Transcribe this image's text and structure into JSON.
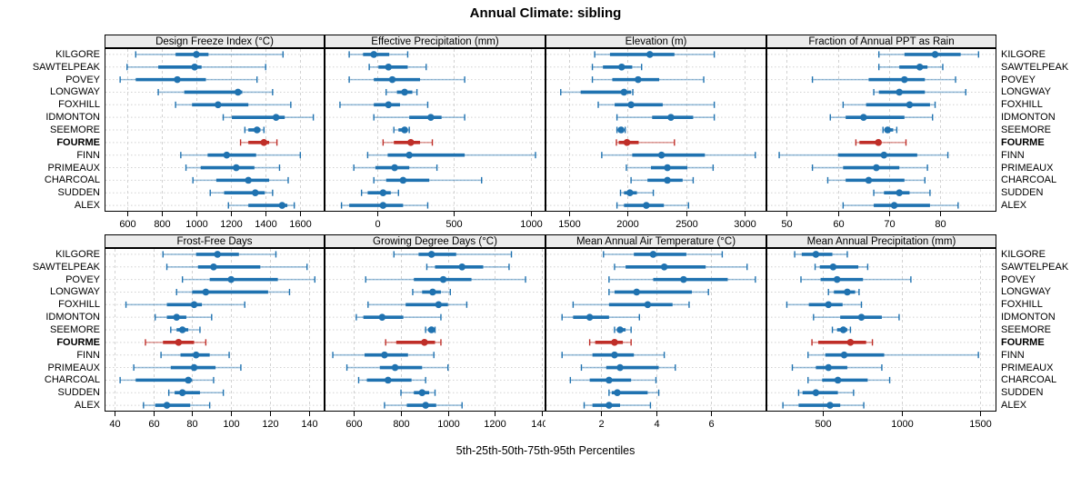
{
  "title": "Annual Climate: sibling",
  "xlabel": "5th-25th-50th-75th-95th Percentiles",
  "sites": [
    "KILGORE",
    "SAWTELPEAK",
    "POVEY",
    "LONGWAY",
    "FOXHILL",
    "IDMONTON",
    "SEEMORE",
    "FOURME",
    "FINN",
    "PRIMEAUX",
    "CHARCOAL",
    "SUDDEN",
    "ALEX"
  ],
  "highlight_site": "FOURME",
  "colors": {
    "normal": "#1f72b0",
    "highlight": "#bf2e28",
    "grid": "#d2d2d2",
    "strip_bg": "#ececec",
    "border": "#000000"
  },
  "chart_data": [
    {
      "type": "dot-range",
      "title": "Design Freeze Index (°C)",
      "row": 0,
      "col": 0,
      "xlim": [
        470,
        1740
      ],
      "xticks": [
        600,
        800,
        1000,
        1200,
        1400,
        1600
      ],
      "percentiles": [
        "5th",
        "25th",
        "50th",
        "75th",
        "95th"
      ],
      "data": {
        "KILGORE": [
          650,
          880,
          1000,
          1070,
          1500
        ],
        "SAWTELPEAK": [
          600,
          780,
          990,
          1030,
          1400
        ],
        "POVEY": [
          560,
          650,
          890,
          1055,
          1350
        ],
        "LONGWAY": [
          780,
          930,
          1240,
          1265,
          1440
        ],
        "FOXHILL": [
          880,
          975,
          1125,
          1300,
          1545
        ],
        "IDMONTON": [
          1155,
          1205,
          1460,
          1510,
          1675
        ],
        "SEEMORE": [
          1280,
          1300,
          1350,
          1370,
          1390
        ],
        "FOURME": [
          1255,
          1300,
          1390,
          1420,
          1465
        ],
        "FINN": [
          910,
          1065,
          1175,
          1345,
          1600
        ],
        "PRIMEAUX": [
          940,
          1025,
          1230,
          1335,
          1480
        ],
        "CHARCOAL": [
          980,
          1115,
          1300,
          1420,
          1530
        ],
        "SUDDEN": [
          1080,
          1160,
          1340,
          1395,
          1440
        ],
        "ALEX": [
          1185,
          1300,
          1495,
          1525,
          1565
        ]
      }
    },
    {
      "type": "dot-range",
      "title": "Effective Precipitation (mm)",
      "row": 0,
      "col": 1,
      "xlim": [
        -340,
        1095
      ],
      "xticks": [
        0,
        500,
        1000
      ],
      "percentiles": [
        "5th",
        "25th",
        "50th",
        "75th",
        "95th"
      ],
      "data": {
        "KILGORE": [
          -180,
          -90,
          -20,
          80,
          200
        ],
        "SAWTELPEAK": [
          -50,
          10,
          75,
          200,
          320
        ],
        "POVEY": [
          -180,
          -20,
          100,
          280,
          570
        ],
        "LONGWAY": [
          60,
          130,
          180,
          230,
          260
        ],
        "FOXHILL": [
          -240,
          -20,
          75,
          150,
          330
        ],
        "IDMONTON": [
          -20,
          210,
          350,
          420,
          570
        ],
        "SEEMORE": [
          110,
          140,
          180,
          200,
          210
        ],
        "FOURME": [
          40,
          110,
          220,
          280,
          360
        ],
        "FINN": [
          -60,
          70,
          210,
          570,
          1030
        ],
        "PRIMEAUX": [
          -150,
          -10,
          115,
          210,
          390
        ],
        "CHARCOAL": [
          -20,
          60,
          170,
          340,
          680
        ],
        "SUDDEN": [
          -100,
          -60,
          40,
          90,
          140
        ],
        "ALEX": [
          -230,
          -180,
          40,
          170,
          330
        ]
      }
    },
    {
      "type": "dot-range",
      "title": "Elevation (m)",
      "row": 0,
      "col": 2,
      "xlim": [
        1300,
        3185
      ],
      "xticks": [
        1500,
        2000,
        2500,
        3000
      ],
      "percentiles": [
        "5th",
        "25th",
        "50th",
        "75th",
        "95th"
      ],
      "data": {
        "KILGORE": [
          1720,
          1850,
          2190,
          2400,
          2740
        ],
        "SAWTELPEAK": [
          1700,
          1790,
          1950,
          2040,
          2120
        ],
        "POVEY": [
          1700,
          1870,
          2090,
          2270,
          2650
        ],
        "LONGWAY": [
          1430,
          1600,
          1970,
          2030,
          2045
        ],
        "FOXHILL": [
          1750,
          1890,
          2030,
          2300,
          2740
        ],
        "IDMONTON": [
          1910,
          2210,
          2370,
          2560,
          2740
        ],
        "SEEMORE": [
          1910,
          1925,
          1945,
          1960,
          1980
        ],
        "FOURME": [
          1905,
          1925,
          1995,
          2095,
          2400
        ],
        "FINN": [
          1780,
          2040,
          2290,
          2660,
          3090
        ],
        "PRIMEAUX": [
          1990,
          2200,
          2340,
          2510,
          2730
        ],
        "CHARCOAL": [
          2030,
          2170,
          2340,
          2470,
          2560
        ],
        "SUDDEN": [
          1940,
          1970,
          2020,
          2080,
          2220
        ],
        "ALEX": [
          1910,
          1970,
          2160,
          2310,
          2520
        ]
      }
    },
    {
      "type": "dot-range",
      "title": "Fraction of Annual PPT as Rain",
      "row": 0,
      "col": 3,
      "xlim": [
        46,
        91
      ],
      "xticks": [
        50,
        60,
        70,
        80
      ],
      "percentiles": [
        "5th",
        "25th",
        "50th",
        "75th",
        "95th"
      ],
      "data": {
        "KILGORE": [
          68,
          73,
          79,
          84,
          87.5
        ],
        "SAWTELPEAK": [
          68,
          72,
          76,
          77.5,
          80.5
        ],
        "POVEY": [
          55,
          66,
          73,
          77,
          83
        ],
        "LONGWAY": [
          67,
          68,
          72,
          77,
          85
        ],
        "FOXHILL": [
          61,
          65.5,
          74,
          78,
          79
        ],
        "IDMONTON": [
          58.5,
          61.5,
          65,
          73,
          78.5
        ],
        "SEEMORE": [
          68.8,
          69.2,
          69.7,
          70.8,
          71.5
        ],
        "FOURME": [
          63.5,
          64.2,
          67.9,
          68.4,
          73.3
        ],
        "FINN": [
          48.5,
          60,
          69,
          75.5,
          81.5
        ],
        "PRIMEAUX": [
          55,
          61,
          67.5,
          72,
          77.5
        ],
        "CHARCOAL": [
          58,
          61.5,
          66,
          73,
          77
        ],
        "SUDDEN": [
          67,
          69,
          72,
          74,
          78
        ],
        "ALEX": [
          61,
          67,
          71,
          78,
          83.5
        ]
      }
    },
    {
      "type": "dot-range",
      "title": "Frost-Free Days",
      "row": 1,
      "col": 0,
      "xlim": [
        35,
        148
      ],
      "xticks": [
        40,
        60,
        80,
        100,
        120,
        140
      ],
      "percentiles": [
        "5th",
        "25th",
        "50th",
        "75th",
        "95th"
      ],
      "data": {
        "KILGORE": [
          65,
          82,
          93,
          104,
          123
        ],
        "SAWTELPEAK": [
          67,
          83,
          91,
          115,
          139
        ],
        "POVEY": [
          75,
          89,
          100,
          124,
          143
        ],
        "LONGWAY": [
          72,
          80,
          87,
          119,
          130
        ],
        "FOXHILL": [
          46,
          67,
          81,
          85,
          107
        ],
        "IDMONTON": [
          61,
          67,
          72,
          77,
          90
        ],
        "SEEMORE": [
          69,
          72,
          75,
          78,
          84
        ],
        "FOURME": [
          56,
          65,
          73,
          81,
          87
        ],
        "FINN": [
          64,
          74,
          82,
          89,
          99
        ],
        "PRIMEAUX": [
          50,
          69,
          81,
          92,
          105
        ],
        "CHARCOAL": [
          43,
          51,
          78,
          80,
          91
        ],
        "SUDDEN": [
          68,
          71,
          75,
          84,
          96
        ],
        "ALEX": [
          55,
          61,
          67,
          79,
          89
        ]
      }
    },
    {
      "type": "dot-range",
      "title": "Growing Degree Days (°C)",
      "row": 1,
      "col": 1,
      "xlim": [
        475,
        1415
      ],
      "xticks": [
        600,
        800,
        1000,
        1200,
        1400
      ],
      "percentiles": [
        "5th",
        "25th",
        "50th",
        "75th",
        "95th"
      ],
      "data": {
        "KILGORE": [
          770,
          875,
          930,
          1035,
          1270
        ],
        "SAWTELPEAK": [
          910,
          945,
          1060,
          1150,
          1260
        ],
        "POVEY": [
          650,
          855,
          980,
          1100,
          1330
        ],
        "LONGWAY": [
          850,
          890,
          935,
          970,
          1010
        ],
        "FOXHILL": [
          660,
          820,
          960,
          1000,
          1080
        ],
        "IDMONTON": [
          610,
          640,
          720,
          810,
          970
        ],
        "SEEMORE": [
          905,
          915,
          930,
          940,
          945
        ],
        "FOURME": [
          735,
          780,
          900,
          945,
          970
        ],
        "FINN": [
          510,
          645,
          730,
          830,
          940
        ],
        "PRIMEAUX": [
          570,
          710,
          775,
          890,
          1000
        ],
        "CHARCOAL": [
          620,
          655,
          745,
          845,
          905
        ],
        "SUDDEN": [
          800,
          855,
          890,
          920,
          945
        ],
        "ALEX": [
          730,
          825,
          905,
          950,
          1060
        ]
      }
    },
    {
      "type": "dot-range",
      "title": "Mean Annual Air Temperature (°C)",
      "row": 1,
      "col": 2,
      "xlim": [
        0,
        8
      ],
      "xticks": [
        2,
        4,
        6
      ],
      "percentiles": [
        "5th",
        "25th",
        "50th",
        "75th",
        "95th"
      ],
      "data": {
        "KILGORE": [
          2.1,
          3.2,
          3.9,
          5.1,
          6.4
        ],
        "SAWTELPEAK": [
          2.5,
          2.9,
          4.3,
          5.8,
          7.3
        ],
        "POVEY": [
          2.3,
          3.9,
          5.0,
          6.6,
          7.6
        ],
        "LONGWAY": [
          2.3,
          2.5,
          3.3,
          5.3,
          5.9
        ],
        "FOXHILL": [
          1.0,
          2.3,
          3.7,
          4.6,
          5.2
        ],
        "IDMONTON": [
          0.6,
          1.0,
          1.6,
          2.3,
          3.4
        ],
        "SEEMORE": [
          2.5,
          2.6,
          2.7,
          2.9,
          3.1
        ],
        "FOURME": [
          1.6,
          1.8,
          2.5,
          2.8,
          3.1
        ],
        "FINN": [
          0.6,
          1.7,
          2.5,
          3.2,
          4.3
        ],
        "PRIMEAUX": [
          1.3,
          2.2,
          2.7,
          4.1,
          4.7
        ],
        "CHARCOAL": [
          0.9,
          1.6,
          2.3,
          3.1,
          4.0
        ],
        "SUDDEN": [
          2.3,
          2.4,
          2.6,
          3.7,
          4.1
        ],
        "ALEX": [
          1.4,
          1.7,
          2.3,
          2.7,
          3.8
        ]
      }
    },
    {
      "type": "dot-range",
      "title": "Mean Annual Precipitation (mm)",
      "row": 1,
      "col": 3,
      "xlim": [
        140,
        1605
      ],
      "xticks": [
        500,
        1000,
        1500
      ],
      "percentiles": [
        "5th",
        "25th",
        "50th",
        "75th",
        "95th"
      ],
      "data": {
        "KILGORE": [
          320,
          365,
          455,
          560,
          655
        ],
        "SAWTELPEAK": [
          450,
          480,
          565,
          725,
          785
        ],
        "POVEY": [
          360,
          485,
          590,
          755,
          1060
        ],
        "LONGWAY": [
          535,
          570,
          655,
          705,
          730
        ],
        "FOXHILL": [
          270,
          410,
          535,
          625,
          745
        ],
        "IDMONTON": [
          440,
          610,
          745,
          875,
          985
        ],
        "SEEMORE": [
          560,
          590,
          630,
          655,
          675
        ],
        "FOURME": [
          430,
          470,
          675,
          775,
          815
        ],
        "FINN": [
          405,
          515,
          635,
          890,
          1490
        ],
        "PRIMEAUX": [
          305,
          455,
          535,
          655,
          875
        ],
        "CHARCOAL": [
          405,
          495,
          595,
          785,
          925
        ],
        "SUDDEN": [
          345,
          370,
          455,
          595,
          695
        ],
        "ALEX": [
          245,
          345,
          545,
          610,
          760
        ]
      }
    }
  ]
}
